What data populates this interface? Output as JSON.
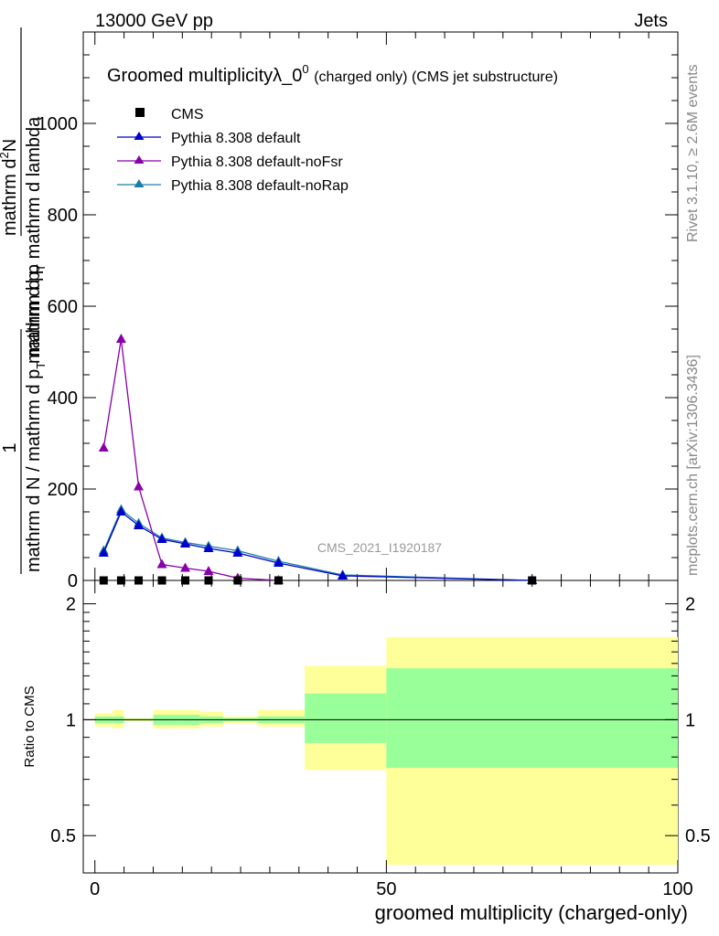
{
  "header": {
    "left": "13000 GeV pp",
    "right": "Jets"
  },
  "side_labels": {
    "rivet": "Rivet 3.1.10, ≥ 2.6M events",
    "mcplots": "mcplots.cern.ch [arXiv:1306.3436]"
  },
  "title": {
    "main": "Groomed multiplicityλ_0",
    "superscript": "0",
    "suffix": "(charged only) (CMS jet substructure)"
  },
  "ylabel_parts": {
    "numerator": "1",
    "denominator": "mathrm d N / mathrm d p",
    "denominator_sub": "T",
    "denominator_end": "mathrm d p",
    "big_num": "mathrm d",
    "big_num_sup": "2",
    "big_num_end": "N",
    "big_den": "mathrm d p",
    "big_den_sub": "T",
    "big_den_end": "mathrm d lambda"
  },
  "watermark": "CMS_2021_I1920187",
  "ratio_ylabel": "Ratio to CMS",
  "xlabel": "groomed multiplicity (charged-only)",
  "colors": {
    "cms": "#000000",
    "default": "#0000cc",
    "noFsr": "#8800aa",
    "noRap": "#1a7fa6",
    "band_outer": "#ffff99",
    "band_inner": "#99ff99"
  },
  "chart_data": {
    "type": "line",
    "xlim": [
      -2,
      100
    ],
    "main_ylim": [
      0,
      1200
    ],
    "main_yticks": [
      0,
      200,
      400,
      600,
      800,
      1000
    ],
    "ratio_ylim": [
      0.4,
      2.3
    ],
    "ratio_yticks": [
      0.5,
      1,
      2
    ],
    "xticks": [
      0,
      50,
      100
    ],
    "legend": [
      "CMS",
      "Pythia 8.308 default",
      "Pythia 8.308 default-noFsr",
      "Pythia 8.308 default-noRap"
    ],
    "legend_placement": "top-left",
    "series": [
      {
        "name": "CMS",
        "marker": "square",
        "x": [
          1.5,
          4.5,
          7.5,
          11.5,
          15.5,
          19.5,
          24.5,
          31.5,
          75
        ],
        "y": [
          0,
          0,
          0,
          0,
          0,
          0,
          0,
          0,
          0
        ]
      },
      {
        "name": "Pythia 8.308 default",
        "marker": "triangle",
        "x": [
          1.5,
          4.5,
          7.5,
          11.5,
          15.5,
          19.5,
          24.5,
          31.5,
          42.5,
          75
        ],
        "y": [
          60,
          150,
          120,
          90,
          80,
          70,
          60,
          38,
          10,
          0
        ]
      },
      {
        "name": "Pythia 8.308 default-noFsr",
        "marker": "triangle",
        "x": [
          1.5,
          4.5,
          7.5,
          11.5,
          15.5,
          19.5,
          24.5,
          31.5
        ],
        "y": [
          290,
          528,
          205,
          35,
          27,
          20,
          5,
          0
        ]
      },
      {
        "name": "Pythia 8.308 default-noRap",
        "marker": "triangle",
        "x": [
          1.5,
          4.5,
          7.5,
          11.5,
          15.5,
          19.5,
          24.5,
          31.5,
          42.5,
          75
        ],
        "y": [
          65,
          155,
          125,
          93,
          83,
          75,
          65,
          42,
          12,
          0
        ]
      }
    ],
    "ratio_bands": [
      {
        "x0": 0,
        "x1": 3,
        "outer": [
          0.96,
          1.04
        ],
        "inner": [
          0.98,
          1.02
        ]
      },
      {
        "x0": 3,
        "x1": 5,
        "outer": [
          0.95,
          1.06
        ],
        "inner": [
          0.98,
          1.02
        ]
      },
      {
        "x0": 5,
        "x1": 10,
        "outer": [
          0.99,
          1.01
        ],
        "inner": [
          0.995,
          1.005
        ]
      },
      {
        "x0": 10,
        "x1": 14,
        "outer": [
          0.95,
          1.06
        ],
        "inner": [
          0.97,
          1.03
        ]
      },
      {
        "x0": 14,
        "x1": 18,
        "outer": [
          0.95,
          1.06
        ],
        "inner": [
          0.97,
          1.03
        ]
      },
      {
        "x0": 18,
        "x1": 22,
        "outer": [
          0.96,
          1.05
        ],
        "inner": [
          0.98,
          1.02
        ]
      },
      {
        "x0": 22,
        "x1": 28,
        "outer": [
          0.98,
          1.02
        ],
        "inner": [
          0.99,
          1.01
        ]
      },
      {
        "x0": 28,
        "x1": 36,
        "outer": [
          0.96,
          1.06
        ],
        "inner": [
          0.98,
          1.02
        ]
      },
      {
        "x0": 36,
        "x1": 50,
        "outer": [
          0.74,
          1.38
        ],
        "inner": [
          0.87,
          1.17
        ]
      },
      {
        "x0": 50,
        "x1": 100,
        "outer": [
          0.42,
          1.64
        ],
        "inner": [
          0.75,
          1.36
        ]
      }
    ]
  }
}
